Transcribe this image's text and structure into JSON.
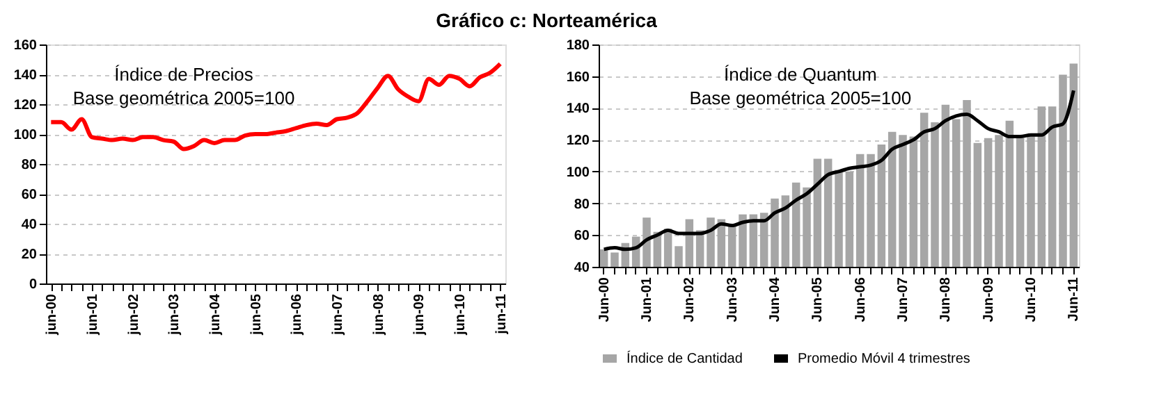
{
  "chart_data": [
    {
      "type": "line",
      "title": "Gráfico c: Norteamérica",
      "annotations": [
        "Índice de Precios",
        "Base geométrica 2005=100"
      ],
      "categories": [
        "jun-00",
        null,
        null,
        null,
        "jun-01",
        null,
        null,
        null,
        "jun-02",
        null,
        null,
        null,
        "jun-03",
        null,
        null,
        null,
        "jun-04",
        null,
        null,
        null,
        "jun-05",
        null,
        null,
        null,
        "jun-06",
        null,
        null,
        null,
        "jun-07",
        null,
        null,
        null,
        "jun-08",
        null,
        null,
        null,
        "jun-09",
        null,
        null,
        null,
        "jun-10",
        null,
        null,
        null,
        "jun-11"
      ],
      "series": [
        {
          "color": "#ff0000",
          "values": [
            108,
            108,
            103,
            110,
            98,
            97,
            96,
            97,
            96,
            98,
            98,
            96,
            95,
            90,
            92,
            96,
            94,
            96,
            96,
            99,
            100,
            100,
            101,
            102,
            104,
            106,
            107,
            106,
            110,
            111,
            114,
            122,
            131,
            139,
            130,
            125,
            122,
            137,
            133,
            139,
            137,
            132,
            138,
            141,
            147
          ]
        }
      ],
      "ylim": [
        0,
        160
      ],
      "yticks": [
        0,
        20,
        40,
        60,
        80,
        100,
        120,
        140,
        160
      ],
      "grid": "y",
      "legend": false
    },
    {
      "type": "bar",
      "annotations": [
        "Índice de Quantum",
        "Base geométrica 2005=100"
      ],
      "categories": [
        "Jun-00",
        null,
        null,
        null,
        "Jun-01",
        null,
        null,
        null,
        "Jun-02",
        null,
        null,
        null,
        "Jun-03",
        null,
        null,
        null,
        "Jun-04",
        null,
        null,
        null,
        "Jun-05",
        null,
        null,
        null,
        "Jun-06",
        null,
        null,
        null,
        "Jun-07",
        null,
        null,
        null,
        "Jun-08",
        null,
        null,
        null,
        "Jun-09",
        null,
        null,
        null,
        "Jun-10",
        null,
        null,
        null,
        "Jun-11"
      ],
      "series": [
        {
          "name": "Índice de Cantidad",
          "color": "#a6a6a6",
          "values": [
            51,
            49,
            55,
            59,
            71,
            62,
            64,
            53,
            70,
            63,
            71,
            70,
            67,
            73,
            73,
            74,
            83,
            85,
            93,
            90,
            108,
            108,
            101,
            100,
            111,
            111,
            117,
            125,
            123,
            122,
            137,
            131,
            142,
            133,
            145,
            118,
            121,
            123,
            132,
            121,
            122,
            141,
            141,
            161,
            168
          ]
        },
        {
          "name": "Promedio Móvil 4 trimestres",
          "type": "line",
          "color": "#000000",
          "values": [
            51,
            52,
            51,
            52,
            57,
            60,
            63,
            61,
            61,
            61,
            63,
            67,
            66,
            68,
            69,
            69,
            74,
            77,
            82,
            86,
            92,
            98,
            100,
            102,
            103,
            104,
            107,
            114,
            117,
            120,
            125,
            127,
            132,
            135,
            136,
            132,
            127,
            125,
            122,
            122,
            123,
            123,
            128,
            130,
            151
          ]
        }
      ],
      "ylim": [
        40,
        180
      ],
      "yticks": [
        40,
        60,
        80,
        100,
        120,
        140,
        160,
        180
      ],
      "grid": "y",
      "legend": "bottom"
    }
  ]
}
